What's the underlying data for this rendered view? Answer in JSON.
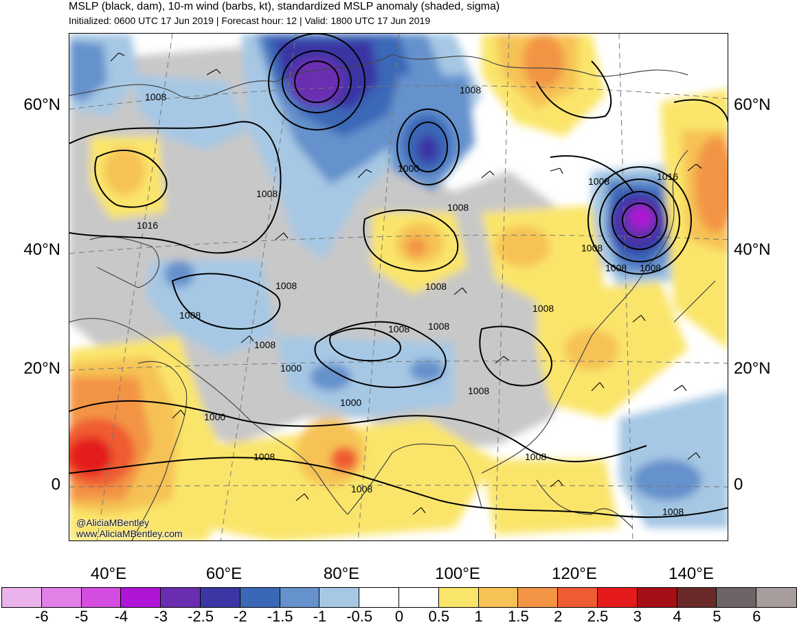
{
  "header": {
    "title": "MSLP (black, dam), 10-m wind (barbs, kt), standardized MSLP anomaly (shaded, sigma)",
    "subtitle": "Initialized: 0600 UTC 17 Jun 2019 | Forecast hour: 12 | Valid: 1800 UTC 17 Jun 2019"
  },
  "axes": {
    "lat_labels": [
      "60°N",
      "40°N",
      "20°N",
      "0"
    ],
    "lon_labels": [
      "40°E",
      "60°E",
      "80°E",
      "100°E",
      "120°E",
      "140°E"
    ]
  },
  "credits": {
    "twitter": "@AliciaMBentley",
    "website": "www.AliciaMBentley.com"
  },
  "contour_labels": [
    "1008",
    "1008",
    "1016",
    "1008",
    "1008",
    "1000",
    "1008",
    "1008",
    "1008",
    "1008",
    "1016",
    "1008",
    "1008",
    "1008",
    "1008",
    "1008",
    "1008",
    "1000",
    "1008",
    "1000",
    "1008",
    "1000",
    "1008",
    "1008",
    "1008",
    "1008"
  ],
  "colorbar": {
    "colors": [
      "#ebb3eb",
      "#e280e8",
      "#d44ce0",
      "#b014d6",
      "#6a2db2",
      "#3a36a4",
      "#3a68b7",
      "#6591cc",
      "#a6c8e4",
      "#ffffff",
      "#ffffff",
      "#fae56b",
      "#f6c255",
      "#f39445",
      "#ef5b33",
      "#e41a1c",
      "#a50f15",
      "#6b2a2a",
      "#6d6565",
      "#a89d9d"
    ],
    "labels": [
      "-6",
      "-5",
      "-4",
      "-3",
      "-2.5",
      "-2",
      "-1.5",
      "-1",
      "-0.5",
      "0",
      "0.5",
      "1",
      "1.5",
      "2",
      "2.5",
      "3",
      "4",
      "5",
      "6"
    ]
  }
}
